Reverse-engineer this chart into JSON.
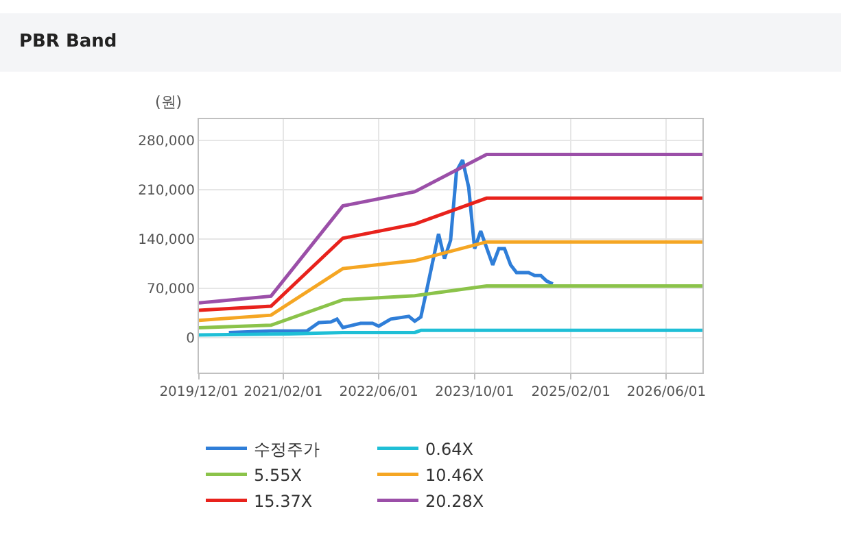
{
  "chart_data": {
    "type": "line",
    "title": "PBR Band",
    "ylabel": "(원)",
    "xlim": [
      "2019-12-01",
      "2026-12-01"
    ],
    "ylim": [
      -50000,
      310000
    ],
    "xticks": [
      {
        "value": "2019-12-01",
        "label": "2019/12/01"
      },
      {
        "value": "2021-02-01",
        "label": "2021/02/01"
      },
      {
        "value": "2022-06-01",
        "label": "2022/06/01"
      },
      {
        "value": "2023-10-01",
        "label": "2023/10/01"
      },
      {
        "value": "2025-02-01",
        "label": "2025/02/01"
      },
      {
        "value": "2026-06-01",
        "label": "2026/06/01"
      }
    ],
    "yticks": [
      {
        "value": 0,
        "label": "0"
      },
      {
        "value": 70000,
        "label": "70,000"
      },
      {
        "value": 140000,
        "label": "140,000"
      },
      {
        "value": 210000,
        "label": "210,000"
      },
      {
        "value": 280000,
        "label": "280,000"
      }
    ],
    "grid": true,
    "legend": "bottom",
    "marker": "none",
    "line_style": "solid",
    "series": [
      {
        "name": "수정주가",
        "color": "#2f7ed8",
        "x": [
          "2020-05",
          "2020-12",
          "2021-06",
          "2021-08",
          "2021-10",
          "2021-11",
          "2021-12",
          "2022-03",
          "2022-05",
          "2022-06",
          "2022-08",
          "2022-11",
          "2022-12",
          "2023-01",
          "2023-02",
          "2023-04",
          "2023-05",
          "2023-06",
          "2023-07",
          "2023-08",
          "2023-09",
          "2023-10",
          "2023-11",
          "2024-01",
          "2024-02",
          "2024-03",
          "2024-04",
          "2024-05",
          "2024-07",
          "2024-08",
          "2024-09",
          "2024-10",
          "2024-11"
        ],
        "values": [
          7000,
          9000,
          9000,
          21000,
          22000,
          26000,
          14000,
          20000,
          20000,
          16000,
          26000,
          30000,
          23000,
          29000,
          69000,
          147000,
          112000,
          138000,
          236000,
          252000,
          213000,
          126000,
          151000,
          103000,
          126000,
          126000,
          103000,
          92000,
          92000,
          88000,
          88000,
          80000,
          76000
        ]
      },
      {
        "name": "0.64X",
        "color": "#1fbfd6",
        "x": [
          "2019-12",
          "2021-03",
          "2021-12",
          "2022-12",
          "2023-01",
          "2026-12"
        ],
        "values": [
          3500,
          5000,
          7000,
          7000,
          10000,
          10000
        ]
      },
      {
        "name": "5.55X",
        "color": "#8bc34a",
        "x": [
          "2019-12",
          "2020-12",
          "2021-12",
          "2022-12",
          "2023-12",
          "2026-12"
        ],
        "values": [
          13800,
          17300,
          53500,
          59200,
          73000,
          73000
        ]
      },
      {
        "name": "10.46X",
        "color": "#f5a623",
        "x": [
          "2019-12",
          "2020-12",
          "2021-12",
          "2022-12",
          "2023-12",
          "2026-12"
        ],
        "values": [
          24200,
          31600,
          97800,
          109000,
          135700,
          135700
        ]
      },
      {
        "name": "15.37X",
        "color": "#e8221c",
        "x": [
          "2019-12",
          "2020-12",
          "2021-12",
          "2022-12",
          "2023-12",
          "2026-12"
        ],
        "values": [
          38500,
          44300,
          140900,
          161000,
          197800,
          197800
        ]
      },
      {
        "name": "20.28X",
        "color": "#9b4fa8",
        "x": [
          "2019-12",
          "2020-12",
          "2021-12",
          "2022-12",
          "2023-12",
          "2026-12"
        ],
        "values": [
          48900,
          58600,
          186800,
          207000,
          259900,
          259900
        ]
      }
    ]
  }
}
